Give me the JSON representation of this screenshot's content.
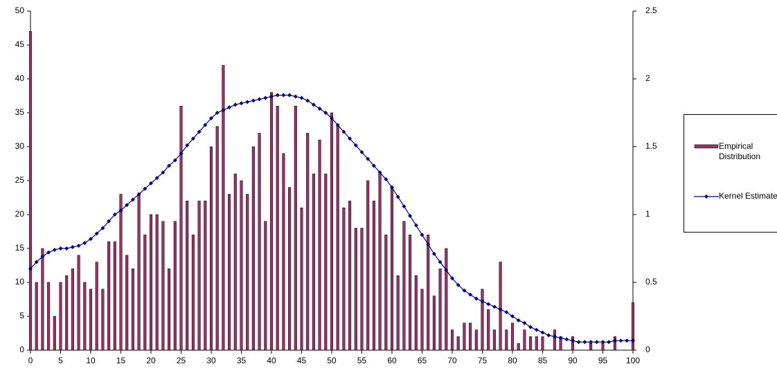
{
  "chart_data": {
    "type": "bar",
    "categories": [
      0,
      null,
      null,
      null,
      null,
      5,
      null,
      null,
      null,
      null,
      10,
      null,
      null,
      null,
      null,
      15,
      null,
      null,
      null,
      null,
      20,
      null,
      null,
      null,
      null,
      25,
      null,
      null,
      null,
      null,
      30,
      null,
      null,
      null,
      null,
      35,
      null,
      null,
      null,
      null,
      40,
      null,
      null,
      null,
      null,
      45,
      null,
      null,
      null,
      null,
      50,
      null,
      null,
      null,
      null,
      55,
      null,
      null,
      null,
      null,
      60,
      null,
      null,
      null,
      null,
      65,
      null,
      null,
      null,
      null,
      70,
      null,
      null,
      null,
      null,
      75,
      null,
      null,
      null,
      null,
      80,
      null,
      null,
      null,
      null,
      85,
      null,
      null,
      null,
      null,
      90,
      null,
      null,
      null,
      null,
      95,
      null,
      null,
      null,
      null,
      100
    ],
    "series": [
      {
        "name": "Empirical Distribution",
        "type": "bar",
        "color": "#993366",
        "values": [
          47,
          10,
          15,
          10,
          5,
          10,
          11,
          12,
          14,
          10,
          9,
          13,
          9,
          16,
          16,
          23,
          14,
          12,
          23,
          17,
          20,
          20,
          19,
          12,
          19,
          36,
          22,
          17,
          22,
          22,
          30,
          33,
          42,
          23,
          26,
          25,
          23,
          30,
          32,
          19,
          38,
          36,
          29,
          24,
          36,
          21,
          32,
          26,
          31,
          26,
          35,
          33,
          21,
          22,
          18,
          18,
          25,
          22,
          26,
          17,
          24,
          11,
          19,
          17,
          11,
          9,
          17,
          8,
          12,
          15,
          3,
          2,
          4,
          4,
          3,
          9,
          6,
          3,
          13,
          3,
          4,
          1,
          3,
          2,
          2,
          2,
          0,
          3,
          2,
          0,
          2,
          0,
          0,
          1,
          0,
          1,
          0,
          2,
          0,
          0,
          7
        ]
      },
      {
        "name": "Kernel Estimate",
        "type": "line",
        "axis": "y2",
        "color": "#000080",
        "values": [
          0.6,
          0.65,
          0.69,
          0.72,
          0.74,
          0.75,
          0.75,
          0.76,
          0.77,
          0.79,
          0.82,
          0.86,
          0.9,
          0.95,
          1.0,
          1.03,
          1.07,
          1.11,
          1.15,
          1.19,
          1.23,
          1.27,
          1.31,
          1.36,
          1.4,
          1.45,
          1.51,
          1.56,
          1.61,
          1.66,
          1.71,
          1.75,
          1.77,
          1.79,
          1.81,
          1.82,
          1.83,
          1.84,
          1.85,
          1.86,
          1.87,
          1.88,
          1.88,
          1.88,
          1.87,
          1.86,
          1.84,
          1.81,
          1.78,
          1.75,
          1.71,
          1.66,
          1.61,
          1.56,
          1.51,
          1.46,
          1.41,
          1.36,
          1.31,
          1.26,
          1.2,
          1.13,
          1.06,
          0.99,
          0.92,
          0.85,
          0.78,
          0.71,
          0.65,
          0.59,
          0.53,
          0.48,
          0.44,
          0.41,
          0.38,
          0.36,
          0.34,
          0.32,
          0.3,
          0.28,
          0.25,
          0.22,
          0.2,
          0.17,
          0.15,
          0.13,
          0.11,
          0.1,
          0.09,
          0.08,
          0.07,
          0.06,
          0.06,
          0.06,
          0.06,
          0.06,
          0.06,
          0.07,
          0.07,
          0.07,
          0.07
        ]
      }
    ],
    "ylim": [
      0,
      50
    ],
    "yticks": [
      0,
      5,
      10,
      15,
      20,
      25,
      30,
      35,
      40,
      45,
      50
    ],
    "y2lim": [
      0,
      2.5
    ],
    "y2ticks": [
      0,
      0.5,
      1,
      1.5,
      2,
      2.5
    ],
    "grid": false,
    "legend": "right"
  }
}
